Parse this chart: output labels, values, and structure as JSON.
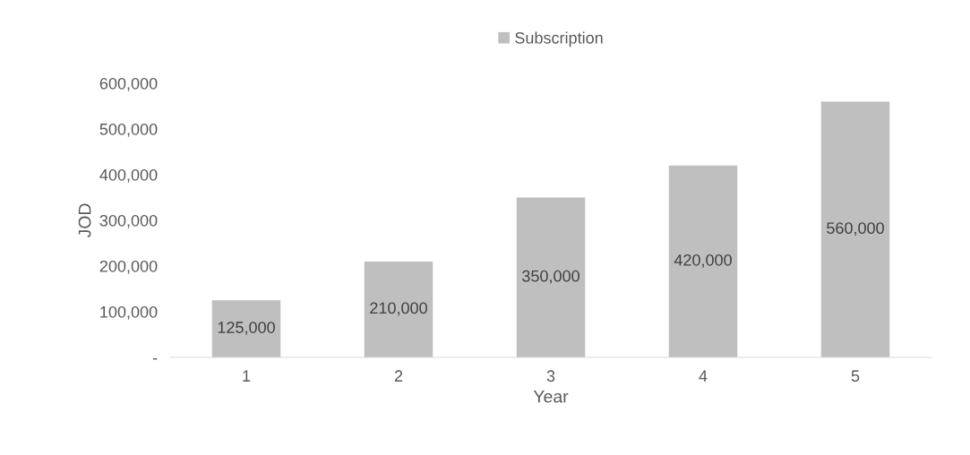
{
  "chart_data": {
    "type": "bar",
    "xlabel": "Year",
    "ylabel": "JOD",
    "categories": [
      "1",
      "2",
      "3",
      "4",
      "5"
    ],
    "series": [
      {
        "name": "Subscription",
        "color": "#bfbfbf",
        "values": [
          125000,
          210000,
          350000,
          420000,
          560000
        ],
        "value_labels": [
          "125,000",
          "210,000",
          "350,000",
          "420,000",
          "560,000"
        ]
      }
    ],
    "ylim": [
      0,
      600000
    ],
    "yticks": [
      {
        "value": 0,
        "label": "-"
      },
      {
        "value": 100000,
        "label": "100,000"
      },
      {
        "value": 200000,
        "label": "200,000"
      },
      {
        "value": 300000,
        "label": "300,000"
      },
      {
        "value": 400000,
        "label": "400,000"
      },
      {
        "value": 500000,
        "label": "500,000"
      },
      {
        "value": 600000,
        "label": "600,000"
      }
    ],
    "grid": false,
    "legend": "top"
  }
}
